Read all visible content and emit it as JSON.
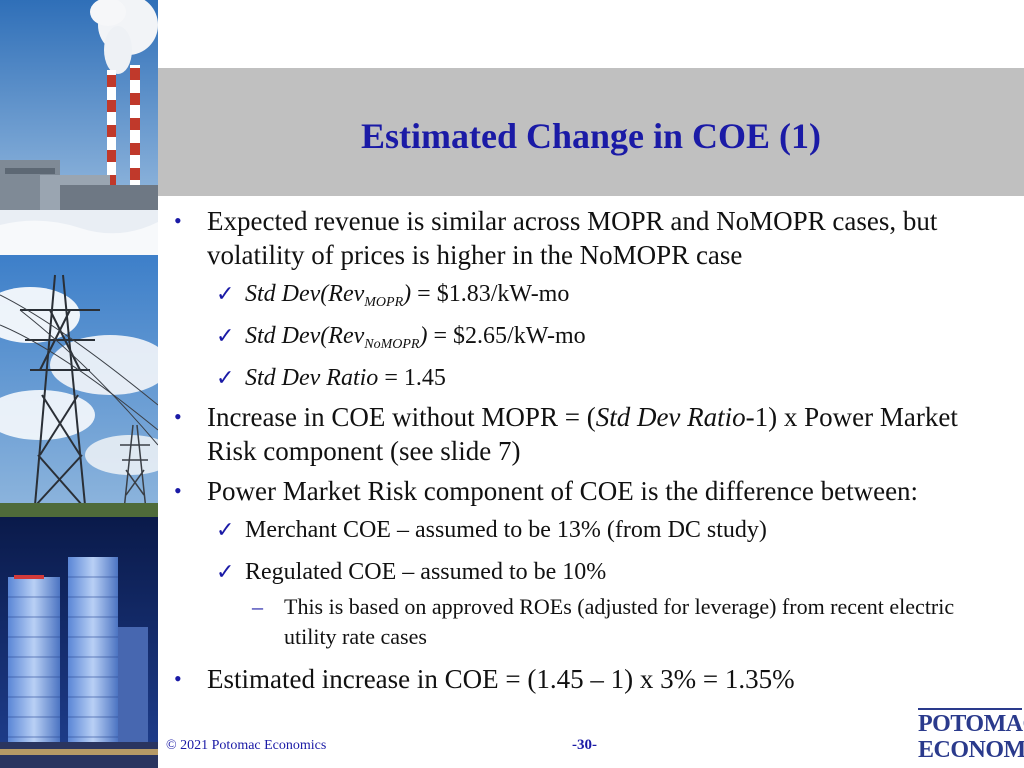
{
  "slide": {
    "title": "Estimated Change in COE (1)",
    "footer_copyright": "© 2021 Potomac Economics",
    "page_number": "-30-",
    "logo": {
      "line1": "POTOMAC",
      "line2": "ECONOMICS"
    }
  },
  "bullets": {
    "b1": "Expected revenue is similar across MOPR and NoMOPR cases, but volatility of prices is higher in the NoMOPR case",
    "b1_s1": {
      "label": "Std Dev(Rev",
      "sub": "MOPR",
      "close": ")",
      "value": " = $1.83/kW-mo"
    },
    "b1_s2": {
      "label": "Std Dev(Rev",
      "sub": "NoMOPR",
      "close": ")",
      "value": " = $2.65/kW-mo"
    },
    "b1_s3": {
      "label": "Std Dev Ratio",
      "value": " = 1.45"
    },
    "b2": {
      "pre": "Increase in COE without MOPR = (",
      "ital": "Std Dev Ratio",
      "post": "-1) x Power Market Risk component (see slide 7)"
    },
    "b3": "Power Market Risk component of COE is the difference between:",
    "b3_s1": "Merchant COE – assumed to be 13% (from DC study)",
    "b3_s2": "Regulated COE – assumed to be 10%",
    "b3_s2_d1": "This is based on approved ROEs (adjusted for leverage) from recent electric utility rate cases",
    "b4": "Estimated increase in COE = (1.45 – 1) x 3% = 1.35%"
  },
  "markers": {
    "bullet": "•",
    "check": "✓",
    "dash": "–"
  },
  "icons": [
    "power-plant-photo",
    "transmission-tower-photo",
    "city-skyline-photo"
  ]
}
